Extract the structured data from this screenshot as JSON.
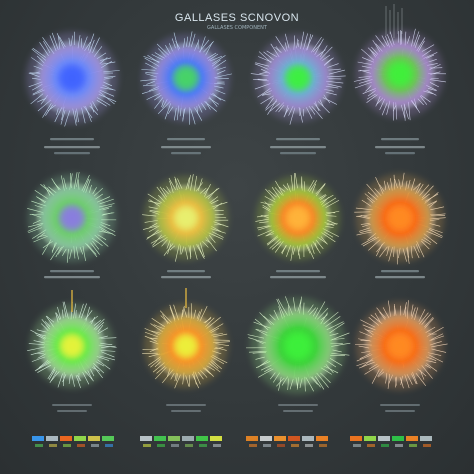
{
  "header": {
    "title": "GALLASES SCNOVON",
    "subtitle": "GALLASES COMPONENT"
  },
  "palette": {
    "background": "#363c3e",
    "blue": "#4a6fff",
    "violet": "#b48cff",
    "green": "#35f03a",
    "yellow": "#e6ee3a",
    "orange": "#ff8a1e",
    "cyan": "#9ef2ff"
  },
  "cells": [
    {
      "name": "cell-r1c1",
      "core": "#3f64ff",
      "mid": "#6f8cff",
      "halo": "#b7a6ff",
      "fringe": "#cfe8ff"
    },
    {
      "name": "cell-r1c2",
      "core": "#46d466",
      "mid": "#4b7bff",
      "halo": "#a99bff",
      "fringe": "#cdeaff"
    },
    {
      "name": "cell-r1c3",
      "core": "#3cf040",
      "mid": "#6fb3d8",
      "halo": "#b49bf0",
      "fringe": "#dde6ff"
    },
    {
      "name": "cell-r1c4",
      "core": "#3ff03a",
      "mid": "#6ccb54",
      "halo": "#c49bf0",
      "fringe": "#e2e6ff"
    },
    {
      "name": "cell-r2c1",
      "core": "#8a7de0",
      "mid": "#6ed36b",
      "halo": "#9ee8b6",
      "fringe": "#d6ffd6"
    },
    {
      "name": "cell-r2c2",
      "core": "#e8f070",
      "mid": "#f0c040",
      "halo": "#c6d94a",
      "fringe": "#f2ffcf"
    },
    {
      "name": "cell-r2c3",
      "core": "#ffb43a",
      "mid": "#ff8a24",
      "halo": "#b9e23a",
      "fringe": "#f7ffd0"
    },
    {
      "name": "cell-r2c4",
      "core": "#ff8a20",
      "mid": "#ff6c18",
      "halo": "#f2b050",
      "fringe": "#ffe6c4"
    },
    {
      "name": "cell-r3c1",
      "core": "#e6f33a",
      "mid": "#6af04a",
      "halo": "#b0f7a0",
      "fringe": "#e6fff0"
    },
    {
      "name": "cell-r3c2",
      "core": "#ecf03a",
      "mid": "#ff9428",
      "halo": "#f4c040",
      "fringe": "#fff2c2"
    },
    {
      "name": "cell-r3c3",
      "core": "#3cf03a",
      "mid": "#3cd83a",
      "halo": "#9cef8a",
      "fringe": "#e6ffd8"
    },
    {
      "name": "cell-r3c4",
      "core": "#ff8a20",
      "mid": "#ff6e18",
      "halo": "#f8a860",
      "fringe": "#ffe2c6"
    }
  ],
  "caption_bar_colors": [
    "#9fb0b6",
    "#b8c6cb",
    "#8d9ea5"
  ],
  "legend_colors": [
    [
      "#3aa0ff",
      "#b7c7cf",
      "#ff6b1e",
      "#9be84c",
      "#e0d04c",
      "#5ad95c"
    ],
    [
      "#c7d2d6",
      "#45d152",
      "#8ecf5e",
      "#a7b8bd",
      "#42d64a",
      "#e4f244"
    ],
    [
      "#f08a24",
      "#d7dcdd",
      "#ff9a2c",
      "#e35a1e",
      "#b9c7cd",
      "#ff8a24"
    ],
    [
      "#ff7a1e",
      "#9be84c",
      "#c7d2d6",
      "#2fcf4a",
      "#ff8a24",
      "#b8c6cb"
    ]
  ]
}
